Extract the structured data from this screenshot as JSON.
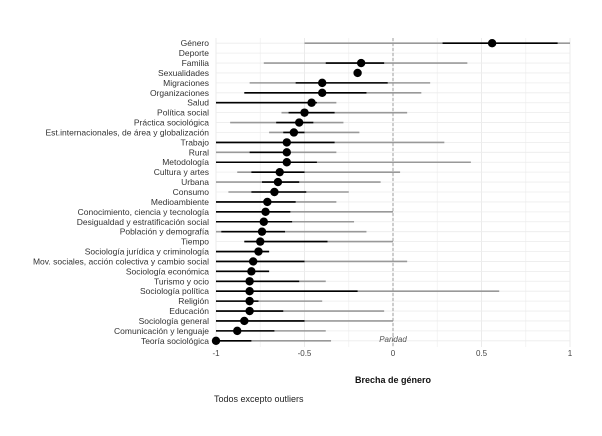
{
  "chart_data": {
    "type": "scatter",
    "xlabel": "Brecha de género",
    "xlim": [
      -1,
      1
    ],
    "xticks": [
      -1,
      -0.5,
      0,
      0.5,
      1
    ],
    "xtick_labels": [
      "-1",
      "-0.5",
      "0",
      "0.5",
      "1"
    ],
    "reference_line": {
      "x": 0,
      "label": "Paridad"
    },
    "grid": true,
    "series": [
      {
        "role": "interval_outer",
        "color": "#999999"
      },
      {
        "role": "interval_inner",
        "color": "#000000"
      },
      {
        "role": "point",
        "color": "#000000"
      }
    ],
    "categories": [
      "Género",
      "Deporte",
      "Familia",
      "Sexualidades",
      "Migraciones",
      "Organizaciones",
      "Salud",
      "Política social",
      "Práctica sociológica",
      "Est.internacionales, de área y globalización",
      "Trabajo",
      "Rural",
      "Metodología",
      "Cultura y artes",
      "Urbana",
      "Consumo",
      "Medioambiente",
      "Conocimiento, ciencia y tecnología",
      "Desigualdad y estratificación social",
      "Población y demografía",
      "Tiempo",
      "Sociología jurídica y criminología",
      "Mov. sociales, acción colectiva y cambio social",
      "Sociología económica",
      "Turismo y ocio",
      "Sociología política",
      "Religión",
      "Educación",
      "Sociología general",
      "Comunicación y lenguaje",
      "Teoría sociológica"
    ],
    "estimates": [
      0.56,
      null,
      -0.18,
      -0.2,
      -0.4,
      -0.4,
      -0.46,
      -0.5,
      -0.53,
      -0.56,
      -0.6,
      -0.6,
      -0.6,
      -0.64,
      -0.65,
      -0.67,
      -0.71,
      -0.72,
      -0.73,
      -0.74,
      -0.75,
      -0.76,
      -0.79,
      -0.8,
      -0.81,
      -0.81,
      -0.81,
      -0.81,
      -0.84,
      -0.88,
      -1.0
    ],
    "outer_low": [
      -0.5,
      null,
      -0.73,
      -0.2,
      -0.81,
      -0.84,
      -1.0,
      -0.63,
      -0.92,
      -0.7,
      -1.0,
      -1.0,
      -1.0,
      -0.88,
      -1.0,
      -0.93,
      -1.0,
      -1.0,
      -1.0,
      -1.0,
      -0.84,
      -1.0,
      -1.0,
      -1.0,
      -1.0,
      -1.0,
      -1.0,
      -1.0,
      -1.0,
      -1.0,
      -1.0
    ],
    "outer_high": [
      1.0,
      null,
      0.42,
      -0.2,
      0.21,
      0.16,
      -0.32,
      0.08,
      -0.28,
      -0.19,
      0.29,
      -0.32,
      0.44,
      0.04,
      -0.07,
      -0.25,
      -0.32,
      0.0,
      -0.22,
      -0.15,
      0.0,
      -0.7,
      0.08,
      -0.7,
      -0.38,
      0.6,
      -0.4,
      -0.05,
      0.0,
      -0.38,
      -0.35
    ],
    "inner_low": [
      0.28,
      null,
      -0.38,
      -0.2,
      -0.55,
      -0.84,
      -1.0,
      -0.59,
      -0.66,
      -0.62,
      -1.0,
      -0.81,
      -1.0,
      -0.8,
      -0.74,
      -0.8,
      -1.0,
      -1.0,
      -1.0,
      -0.97,
      -0.84,
      -1.0,
      -1.0,
      -1.0,
      -1.0,
      -1.0,
      -1.0,
      -1.0,
      -1.0,
      -1.0,
      -1.0
    ],
    "inner_high": [
      0.93,
      null,
      -0.05,
      -0.2,
      -0.03,
      -0.15,
      -0.43,
      -0.33,
      -0.45,
      -0.5,
      -0.33,
      -0.59,
      -0.43,
      -0.5,
      -0.53,
      -0.49,
      -0.55,
      -0.58,
      -0.57,
      -0.61,
      -0.37,
      -0.7,
      -0.5,
      -0.7,
      -0.53,
      -0.2,
      -0.76,
      -0.62,
      -0.5,
      -0.67,
      -0.8
    ]
  },
  "caption": "Todos excepto outliers"
}
